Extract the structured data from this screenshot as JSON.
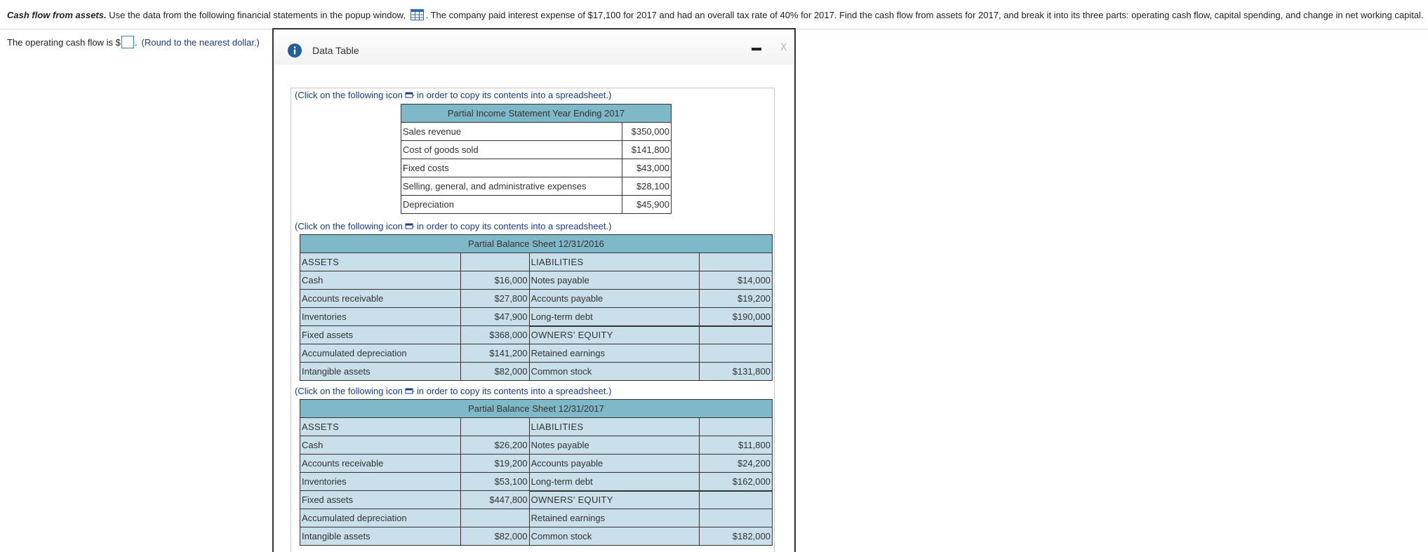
{
  "question": {
    "title": "Cash flow from assets.",
    "text_before_icon": " Use the data from the following financial statements in the popup window, ",
    "text_after_icon": ". The company paid interest expense of $17,100 for 2017 and had an overall tax rate of 40% for 2017. Find the cash flow from assets for 2017, and break it into its three parts: operating cash flow, capital spending, and change in net working capital.",
    "icon": "data-table-grid-icon"
  },
  "answer": {
    "prompt": "The operating cash flow is $",
    "suffix": ".",
    "hint": "(Round to the nearest dollar.)"
  },
  "popup": {
    "title": "Data Table",
    "info_icon": "info-icon",
    "minimize_icon": "minimize-icon",
    "close_label": "X",
    "copy_note_before": "(Click on the following icon",
    "copy_note_after": "in order to copy its contents into a spreadsheet.)",
    "income_statement": {
      "title": "Partial Income Statement Year Ending 2017",
      "rows": [
        {
          "label": "Sales revenue",
          "value": "$350,000"
        },
        {
          "label": "Cost of goods sold",
          "value": "$141,800"
        },
        {
          "label": "Fixed costs",
          "value": "$43,000"
        },
        {
          "label": "Selling, general, and administrative expenses",
          "value": "$28,100"
        },
        {
          "label": "Depreciation",
          "value": "$45,900"
        }
      ]
    },
    "balance_2016": {
      "title": "Partial Balance Sheet 12/31/2016",
      "assets_label": "ASSETS",
      "liabilities_label": "LIABILITIES",
      "equity_label": "OWNERS' EQUITY",
      "assets": [
        {
          "label": "Cash",
          "value": "$16,000"
        },
        {
          "label": "Accounts receivable",
          "value": "$27,800"
        },
        {
          "label": "Inventories",
          "value": "$47,900"
        },
        {
          "label": "Fixed assets",
          "value": "$368,000"
        },
        {
          "label": "Accumulated depreciation",
          "value": "$141,200"
        },
        {
          "label": "Intangible assets",
          "value": "$82,000"
        }
      ],
      "liabilities": [
        {
          "label": "Notes payable",
          "value": "$14,000"
        },
        {
          "label": "Accounts payable",
          "value": "$19,200"
        },
        {
          "label": "Long-term debt",
          "value": "$190,000"
        }
      ],
      "equity": [
        {
          "label": "Retained earnings",
          "value": ""
        },
        {
          "label": "Common stock",
          "value": "$131,800"
        }
      ]
    },
    "balance_2017": {
      "title": "Partial Balance Sheet 12/31/2017",
      "assets_label": "ASSETS",
      "liabilities_label": "LIABILITIES",
      "equity_label": "OWNERS' EQUITY",
      "assets": [
        {
          "label": "Cash",
          "value": "$26,200"
        },
        {
          "label": "Accounts receivable",
          "value": "$19,200"
        },
        {
          "label": "Inventories",
          "value": "$53,100"
        },
        {
          "label": "Fixed assets",
          "value": "$447,800"
        },
        {
          "label": "Accumulated depreciation",
          "value": ""
        },
        {
          "label": "Intangible assets",
          "value": "$82,000"
        }
      ],
      "liabilities": [
        {
          "label": "Notes payable",
          "value": "$11,800"
        },
        {
          "label": "Accounts payable",
          "value": "$24,200"
        },
        {
          "label": "Long-term debt",
          "value": "$162,000"
        }
      ],
      "equity": [
        {
          "label": "Retained earnings",
          "value": ""
        },
        {
          "label": "Common stock",
          "value": "$182,000"
        }
      ]
    }
  }
}
